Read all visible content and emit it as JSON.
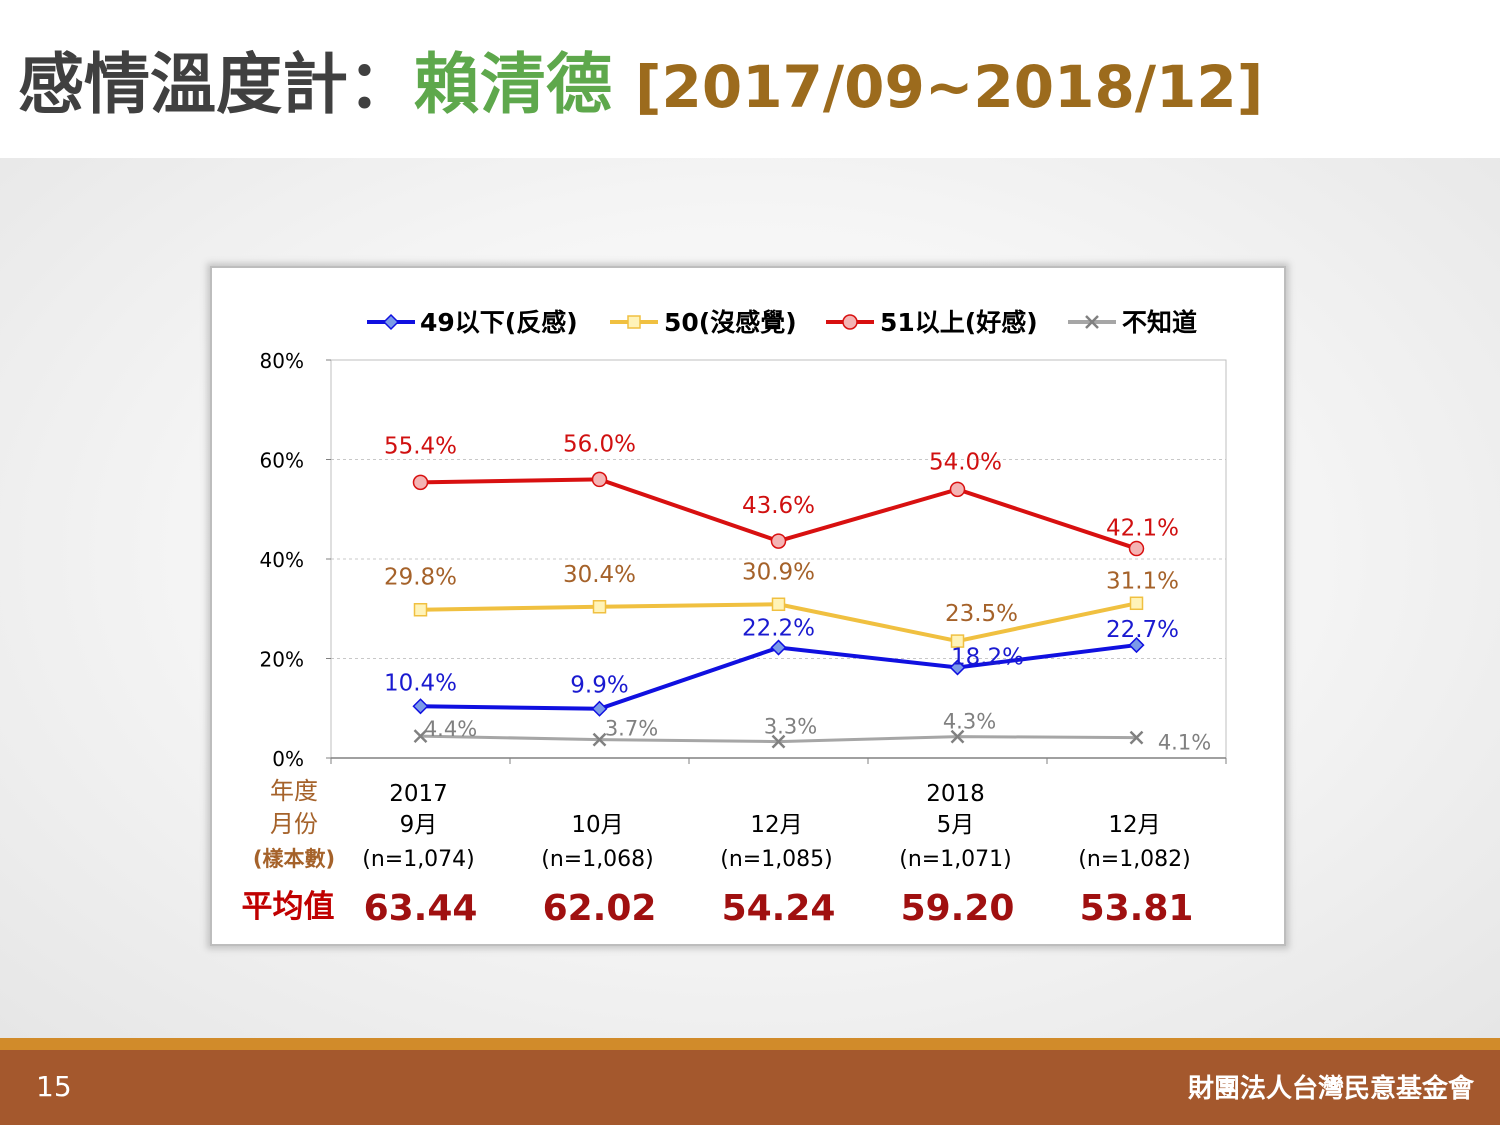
{
  "slide": {
    "title_prefix": "感情溫度計：",
    "title_person": "賴清德",
    "title_period": "[2017/09~2018/12]",
    "page_number": "15",
    "organization": "財團法人台灣民意基金會"
  },
  "chart_data": {
    "type": "line",
    "legend_position": "top",
    "grid": true,
    "ylim": [
      0,
      80
    ],
    "yticks": [
      "0%",
      "20%",
      "40%",
      "60%",
      "80%"
    ],
    "x": [
      "9月",
      "10月",
      "12月",
      "5月",
      "12月"
    ],
    "x_years": [
      "2017",
      "",
      "",
      "2018",
      ""
    ],
    "x_samples": [
      "(n=1,074)",
      "(n=1,068)",
      "(n=1,085)",
      "(n=1,071)",
      "(n=1,082)"
    ],
    "row_labels": {
      "year": "年度",
      "month": "月份",
      "sample": "(樣本數)",
      "mean": "平均值"
    },
    "means": [
      "63.44",
      "62.02",
      "54.24",
      "59.20",
      "53.81"
    ],
    "series": [
      {
        "name": "49以下(反感)",
        "values": [
          10.4,
          9.9,
          22.2,
          18.2,
          22.7
        ],
        "labels": [
          "10.4%",
          "9.9%",
          "22.2%",
          "18.2%",
          "22.7%"
        ],
        "color": "#1010e0",
        "label_color": "#1a1ad0",
        "marker": "diamond"
      },
      {
        "name": "50(沒感覺)",
        "values": [
          29.8,
          30.4,
          30.9,
          23.5,
          31.1
        ],
        "labels": [
          "29.8%",
          "30.4%",
          "30.9%",
          "23.5%",
          "31.1%"
        ],
        "color": "#f0c040",
        "label_color": "#a5622a",
        "marker": "square"
      },
      {
        "name": "51以上(好感)",
        "values": [
          55.4,
          56.0,
          43.6,
          54.0,
          42.1
        ],
        "labels": [
          "55.4%",
          "56.0%",
          "43.6%",
          "54.0%",
          "42.1%"
        ],
        "color": "#d81010",
        "label_color": "#d01010",
        "marker": "circle"
      },
      {
        "name": "不知道",
        "values": [
          4.4,
          3.7,
          3.3,
          4.3,
          4.1
        ],
        "labels": [
          "4.4%",
          "3.7%",
          "3.3%",
          "4.3%",
          "4.1%"
        ],
        "color": "#a6a6a6",
        "label_color": "#808080",
        "marker": "x"
      }
    ]
  }
}
